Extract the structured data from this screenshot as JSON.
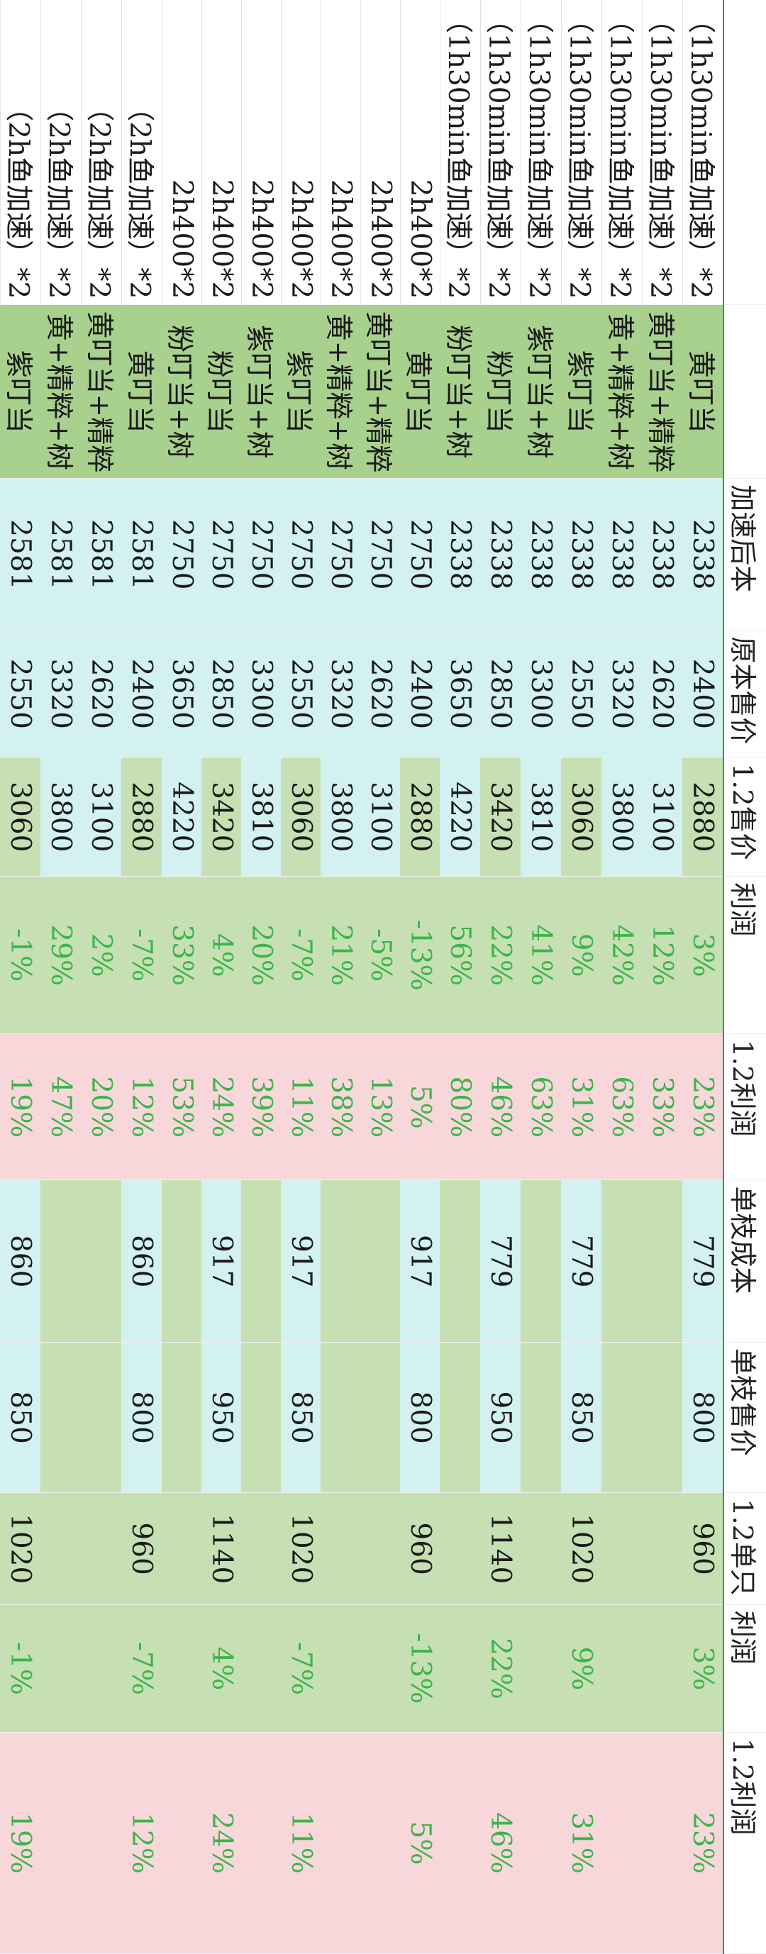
{
  "headers": {
    "name": "",
    "flower": "",
    "cost_after": "加速后本",
    "original_price": "原本售价",
    "price_12": "1.2售价",
    "profit": "利润",
    "profit_12": "1.2利润",
    "unit_cost": "单枝成本",
    "unit_price": "单枝售价",
    "unit_12": "1.2单只",
    "profit_b": "利润",
    "profit_12b": "1.2利润"
  },
  "rows": [
    {
      "name": "（1h30min鱼加速）*2",
      "flower": "黄叮当",
      "cost_after": "2338",
      "original_price": "2400",
      "price_12": "2880",
      "profit": "3%",
      "profit_12": "23%",
      "unit_cost": "779",
      "unit_price": "800",
      "unit_12": "960",
      "profit_b": "3%",
      "profit_12b": "23%"
    },
    {
      "name": "（1h30min鱼加速）*2",
      "flower": "黄叮当+精粹",
      "cost_after": "2338",
      "original_price": "2620",
      "price_12": "3100",
      "profit": "12%",
      "profit_12": "33%",
      "unit_cost": "",
      "unit_price": "",
      "unit_12": "",
      "profit_b": "",
      "profit_12b": ""
    },
    {
      "name": "（1h30min鱼加速）*2",
      "flower": "黄+精粹+树",
      "cost_after": "2338",
      "original_price": "3320",
      "price_12": "3800",
      "profit": "42%",
      "profit_12": "63%",
      "unit_cost": "",
      "unit_price": "",
      "unit_12": "",
      "profit_b": "",
      "profit_12b": ""
    },
    {
      "name": "（1h30min鱼加速）*2",
      "flower": "紫叮当",
      "cost_after": "2338",
      "original_price": "2550",
      "price_12": "3060",
      "profit": "9%",
      "profit_12": "31%",
      "unit_cost": "779",
      "unit_price": "850",
      "unit_12": "1020",
      "profit_b": "9%",
      "profit_12b": "31%"
    },
    {
      "name": "（1h30min鱼加速）*2",
      "flower": "紫叮当+树",
      "cost_after": "2338",
      "original_price": "3300",
      "price_12": "3810",
      "profit": "41%",
      "profit_12": "63%",
      "unit_cost": "",
      "unit_price": "",
      "unit_12": "",
      "profit_b": "",
      "profit_12b": ""
    },
    {
      "name": "（1h30min鱼加速）*2",
      "flower": "粉叮当",
      "cost_after": "2338",
      "original_price": "2850",
      "price_12": "3420",
      "profit": "22%",
      "profit_12": "46%",
      "unit_cost": "779",
      "unit_price": "950",
      "unit_12": "1140",
      "profit_b": "22%",
      "profit_12b": "46%"
    },
    {
      "name": "（1h30min鱼加速）*2",
      "flower": "粉叮当+树",
      "cost_after": "2338",
      "original_price": "3650",
      "price_12": "4220",
      "profit": "56%",
      "profit_12": "80%",
      "unit_cost": "",
      "unit_price": "",
      "unit_12": "",
      "profit_b": "",
      "profit_12b": ""
    },
    {
      "name": "2h400*2",
      "flower": "黄叮当",
      "cost_after": "2750",
      "original_price": "2400",
      "price_12": "2880",
      "profit": "-13%",
      "profit_12": "5%",
      "unit_cost": "917",
      "unit_price": "800",
      "unit_12": "960",
      "profit_b": "-13%",
      "profit_12b": "5%"
    },
    {
      "name": "2h400*2",
      "flower": "黄叮当+精粹",
      "cost_after": "2750",
      "original_price": "2620",
      "price_12": "3100",
      "profit": "-5%",
      "profit_12": "13%",
      "unit_cost": "",
      "unit_price": "",
      "unit_12": "",
      "profit_b": "",
      "profit_12b": ""
    },
    {
      "name": "2h400*2",
      "flower": "黄+精粹+树",
      "cost_after": "2750",
      "original_price": "3320",
      "price_12": "3800",
      "profit": "21%",
      "profit_12": "38%",
      "unit_cost": "",
      "unit_price": "",
      "unit_12": "",
      "profit_b": "",
      "profit_12b": ""
    },
    {
      "name": "2h400*2",
      "flower": "紫叮当",
      "cost_after": "2750",
      "original_price": "2550",
      "price_12": "3060",
      "profit": "-7%",
      "profit_12": "11%",
      "unit_cost": "917",
      "unit_price": "850",
      "unit_12": "1020",
      "profit_b": "-7%",
      "profit_12b": "11%"
    },
    {
      "name": "2h400*2",
      "flower": "紫叮当+树",
      "cost_after": "2750",
      "original_price": "3300",
      "price_12": "3810",
      "profit": "20%",
      "profit_12": "39%",
      "unit_cost": "",
      "unit_price": "",
      "unit_12": "",
      "profit_b": "",
      "profit_12b": ""
    },
    {
      "name": "2h400*2",
      "flower": "粉叮当",
      "cost_after": "2750",
      "original_price": "2850",
      "price_12": "3420",
      "profit": "4%",
      "profit_12": "24%",
      "unit_cost": "917",
      "unit_price": "950",
      "unit_12": "1140",
      "profit_b": "4%",
      "profit_12b": "24%"
    },
    {
      "name": "2h400*2",
      "flower": "粉叮当+树",
      "cost_after": "2750",
      "original_price": "3650",
      "price_12": "4220",
      "profit": "33%",
      "profit_12": "53%",
      "unit_cost": "",
      "unit_price": "",
      "unit_12": "",
      "profit_b": "",
      "profit_12b": ""
    },
    {
      "name": "（2h鱼加速）*2",
      "flower": "黄叮当",
      "cost_after": "2581",
      "original_price": "2400",
      "price_12": "2880",
      "profit": "-7%",
      "profit_12": "12%",
      "unit_cost": "860",
      "unit_price": "800",
      "unit_12": "960",
      "profit_b": "-7%",
      "profit_12b": "12%"
    },
    {
      "name": "（2h鱼加速）*2",
      "flower": "黄叮当+精粹",
      "cost_after": "2581",
      "original_price": "2620",
      "price_12": "3100",
      "profit": "2%",
      "profit_12": "20%",
      "unit_cost": "",
      "unit_price": "",
      "unit_12": "",
      "profit_b": "",
      "profit_12b": ""
    },
    {
      "name": "（2h鱼加速）*2",
      "flower": "黄+精粹+树",
      "cost_after": "2581",
      "original_price": "3320",
      "price_12": "3800",
      "profit": "29%",
      "profit_12": "47%",
      "unit_cost": "",
      "unit_price": "",
      "unit_12": "",
      "profit_b": "",
      "profit_12b": ""
    },
    {
      "name": "（2h鱼加速）*2",
      "flower": "紫叮当",
      "cost_after": "2581",
      "original_price": "2550",
      "price_12": "3060",
      "profit": "-1%",
      "profit_12": "19%",
      "unit_cost": "860",
      "unit_price": "850",
      "unit_12": "1020",
      "profit_b": "-1%",
      "profit_12b": "19%"
    }
  ],
  "colors": {
    "flower_bg": "#a9d18e",
    "cyan_bg": "#d3f1f1",
    "green_bg": "#c6e0b4",
    "pink_bg": "#f8d7da",
    "profit_text": "#3cb44b",
    "header_rule": "#19a15f"
  }
}
